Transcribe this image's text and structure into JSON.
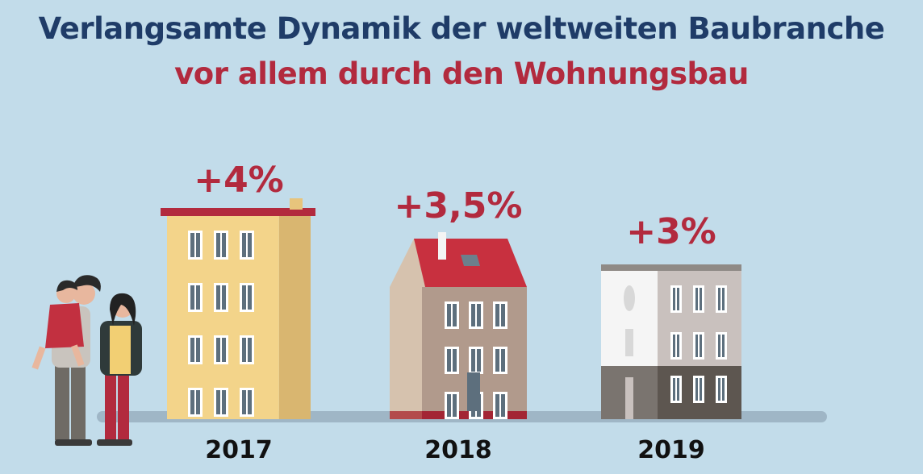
{
  "chart_data": {
    "type": "bar",
    "title": "Verlangsamte Dynamik der weltweiten Baubranche",
    "subtitle": "vor allem durch den Wohnungsbau",
    "categories": [
      "2017",
      "2018",
      "2019"
    ],
    "values": [
      4,
      3.5,
      3
    ],
    "value_labels": [
      "+4%",
      "+3,5%",
      "+3%"
    ],
    "unit": "%",
    "xlabel": "",
    "ylabel": "",
    "grid": false,
    "legend": "none"
  },
  "colors": {
    "background": "#c2dcea",
    "title": "#1f3c68",
    "accent": "#b22a3e",
    "building_2017": "#f3d48a",
    "building_2018": "#b19a8c",
    "building_2019": "#e9e9e9"
  },
  "icons": [
    "family-illustration-icon",
    "apartment-building-icon",
    "townhouse-icon",
    "modern-house-icon"
  ]
}
